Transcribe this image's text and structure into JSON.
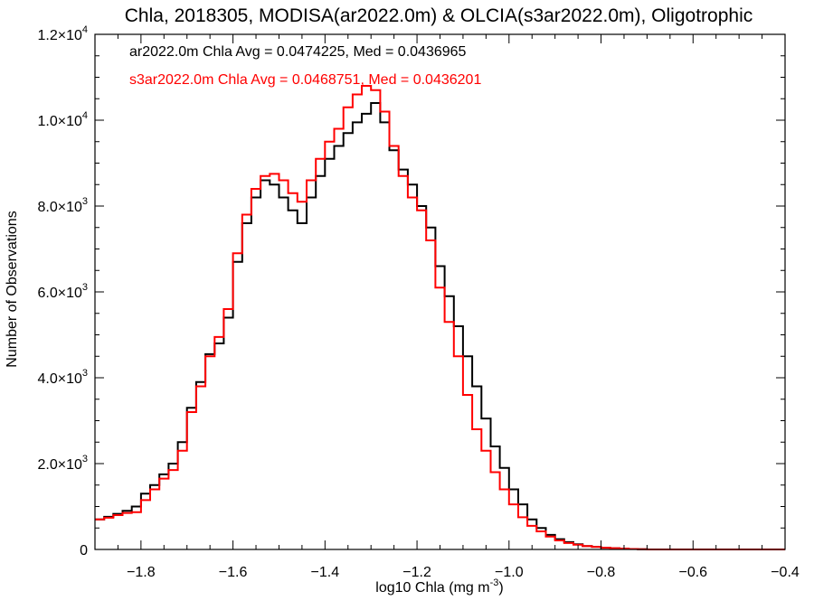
{
  "chart_data": {
    "type": "line",
    "title": "Chla, 2018305, MODISA(ar2022.0m) & OLCIA(s3ar2022.0m), Oligotrophic",
    "xlabel": {
      "main": "log10 Chla (mg m",
      "sup": "-3",
      "close": ")"
    },
    "ylabel": "Number of Observations",
    "xlim": [
      -1.9,
      -0.4
    ],
    "ylim": [
      0,
      12000
    ],
    "step": true,
    "xticks": [
      {
        "v": -1.8,
        "label": "−1.8"
      },
      {
        "v": -1.6,
        "label": "−1.6"
      },
      {
        "v": -1.4,
        "label": "−1.4"
      },
      {
        "v": -1.2,
        "label": "−1.2"
      },
      {
        "v": -1.0,
        "label": "−1.0"
      },
      {
        "v": -0.8,
        "label": "−0.8"
      },
      {
        "v": -0.6,
        "label": "−0.6"
      },
      {
        "v": -0.4,
        "label": "−0.4"
      }
    ],
    "yticks": [
      {
        "v": 0,
        "mant": "0",
        "exp": ""
      },
      {
        "v": 2000,
        "mant": "2.0×10",
        "exp": "3"
      },
      {
        "v": 4000,
        "mant": "4.0×10",
        "exp": "3"
      },
      {
        "v": 6000,
        "mant": "6.0×10",
        "exp": "3"
      },
      {
        "v": 8000,
        "mant": "8.0×10",
        "exp": "3"
      },
      {
        "v": 10000,
        "mant": "1.0×10",
        "exp": "4"
      },
      {
        "v": 12000,
        "mant": "1.2×10",
        "exp": "4"
      }
    ],
    "annotations": [
      {
        "text": "ar2022.0m Chla Avg = 0.0474225, Med = 0.0436965",
        "color": "#000000"
      },
      {
        "text": "s3ar2022.0m Chla Avg = 0.0468751, Med = 0.0436201",
        "color": "#ff0000"
      }
    ],
    "series": [
      {
        "color": "#000000",
        "x": [
          -1.9,
          -1.88,
          -1.86,
          -1.84,
          -1.82,
          -1.8,
          -1.78,
          -1.76,
          -1.74,
          -1.72,
          -1.7,
          -1.68,
          -1.66,
          -1.64,
          -1.62,
          -1.6,
          -1.58,
          -1.56,
          -1.54,
          -1.52,
          -1.5,
          -1.48,
          -1.46,
          -1.44,
          -1.42,
          -1.4,
          -1.38,
          -1.36,
          -1.34,
          -1.32,
          -1.3,
          -1.28,
          -1.26,
          -1.24,
          -1.22,
          -1.2,
          -1.18,
          -1.16,
          -1.14,
          -1.12,
          -1.1,
          -1.08,
          -1.06,
          -1.04,
          -1.02,
          -1.0,
          -0.98,
          -0.96,
          -0.94,
          -0.92,
          -0.9,
          -0.88,
          -0.86,
          -0.84,
          -0.82,
          -0.8,
          -0.78,
          -0.76,
          -0.74,
          -0.72,
          -0.7,
          -0.68,
          -0.66,
          -0.64,
          -0.62,
          -0.6,
          -0.58,
          -0.56,
          -0.54,
          -0.52,
          -0.5,
          -0.48,
          -0.46,
          -0.44,
          -0.42
        ],
        "y": [
          700,
          760,
          830,
          900,
          1000,
          1300,
          1500,
          1750,
          2000,
          2500,
          3300,
          3900,
          4550,
          4800,
          5400,
          6700,
          7600,
          8200,
          8600,
          8500,
          8200,
          7900,
          7600,
          8200,
          8700,
          9100,
          9400,
          9700,
          9950,
          10150,
          10400,
          9950,
          9300,
          8850,
          8500,
          8000,
          7500,
          6600,
          5900,
          5200,
          4500,
          3800,
          3050,
          2400,
          1900,
          1400,
          1050,
          700,
          500,
          340,
          240,
          170,
          120,
          80,
          60,
          40,
          30,
          20,
          10,
          5,
          0,
          0,
          0,
          0,
          0,
          0,
          0,
          0,
          0,
          0,
          0,
          0,
          0,
          0,
          0
        ]
      },
      {
        "color": "#ff0000",
        "x": [
          -1.9,
          -1.88,
          -1.86,
          -1.84,
          -1.82,
          -1.8,
          -1.78,
          -1.76,
          -1.74,
          -1.72,
          -1.7,
          -1.68,
          -1.66,
          -1.64,
          -1.62,
          -1.6,
          -1.58,
          -1.56,
          -1.54,
          -1.52,
          -1.5,
          -1.48,
          -1.46,
          -1.44,
          -1.42,
          -1.4,
          -1.38,
          -1.36,
          -1.34,
          -1.32,
          -1.3,
          -1.28,
          -1.26,
          -1.24,
          -1.22,
          -1.2,
          -1.18,
          -1.16,
          -1.14,
          -1.12,
          -1.1,
          -1.08,
          -1.06,
          -1.04,
          -1.02,
          -1.0,
          -0.98,
          -0.96,
          -0.94,
          -0.92,
          -0.9,
          -0.88,
          -0.86,
          -0.84,
          -0.82,
          -0.8,
          -0.78,
          -0.76,
          -0.74,
          -0.72,
          -0.7,
          -0.68,
          -0.66,
          -0.64,
          -0.62,
          -0.6,
          -0.58,
          -0.56,
          -0.54,
          -0.52,
          -0.5,
          -0.48,
          -0.46,
          -0.44,
          -0.42
        ],
        "y": [
          700,
          740,
          800,
          850,
          870,
          1150,
          1400,
          1650,
          1850,
          2300,
          3200,
          3800,
          4500,
          4950,
          5600,
          6900,
          7800,
          8400,
          8700,
          8750,
          8600,
          8300,
          8100,
          8600,
          9100,
          9500,
          9800,
          10300,
          10600,
          10800,
          10700,
          10200,
          9400,
          8700,
          8200,
          7900,
          7200,
          6100,
          5300,
          4500,
          3600,
          2800,
          2300,
          1800,
          1400,
          1050,
          750,
          550,
          420,
          300,
          210,
          150,
          110,
          80,
          60,
          40,
          30,
          20,
          10,
          5,
          0,
          0,
          0,
          0,
          0,
          0,
          0,
          0,
          0,
          0,
          0,
          0,
          0,
          0,
          0
        ]
      }
    ]
  }
}
